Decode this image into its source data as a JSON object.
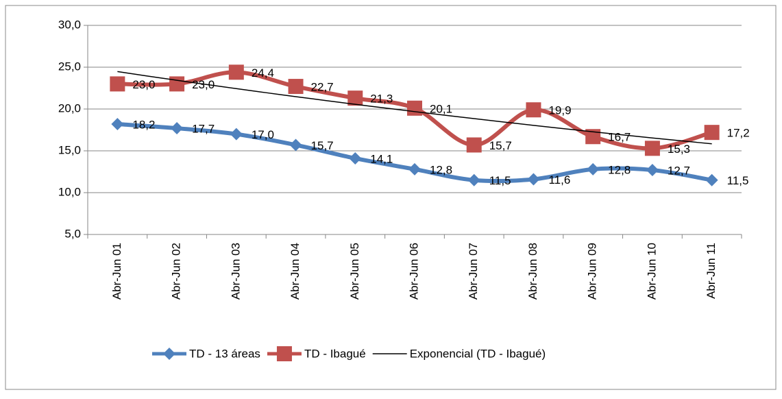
{
  "chart_data": {
    "type": "line",
    "categories": [
      "Abr-Jun 01",
      "Abr-Jun 02",
      "Abr-Jun 03",
      "Abr-Jun 04",
      "Abr-Jun 05",
      "Abr-Jun 06",
      "Abr-Jun 07",
      "Abr-Jun 08",
      "Abr-Jun 09",
      "Abr-Jun 10",
      "Abr-Jun 11"
    ],
    "series": [
      {
        "name": "TD - 13 áreas",
        "color": "#4f81bd",
        "marker": "diamond",
        "values": [
          18.2,
          17.7,
          17.0,
          15.7,
          14.1,
          12.8,
          11.5,
          11.6,
          12.8,
          12.7,
          11.5
        ],
        "value_labels": [
          "18,2",
          "17,7",
          "17,0",
          "15,7",
          "14,1",
          "12,8",
          "11,5",
          "11,6",
          "12,8",
          "12,7",
          "11,5"
        ]
      },
      {
        "name": "TD - Ibagué",
        "color": "#c0504d",
        "marker": "square",
        "values": [
          23.0,
          23.0,
          24.4,
          22.7,
          21.3,
          20.1,
          15.7,
          19.9,
          16.7,
          15.3,
          17.2
        ],
        "value_labels": [
          "23,0",
          "23,0",
          "24,4",
          "22,7",
          "21,3",
          "20,1",
          "15,7",
          "19,9",
          "16,7",
          "15,3",
          "17,2"
        ]
      }
    ],
    "trendline": {
      "name": "Exponencial (TD - Ibagué)",
      "type": "exponential",
      "color": "#000000"
    },
    "ylim": [
      5,
      30
    ],
    "yticks": [
      {
        "value": 5,
        "label": "5,0"
      },
      {
        "value": 10,
        "label": "10,0"
      },
      {
        "value": 15,
        "label": "15,0"
      },
      {
        "value": 20,
        "label": "20,0"
      },
      {
        "value": 25,
        "label": "25,0"
      },
      {
        "value": 30,
        "label": "30,0"
      }
    ],
    "grid": true,
    "legend": "bottom",
    "smooth": true
  }
}
